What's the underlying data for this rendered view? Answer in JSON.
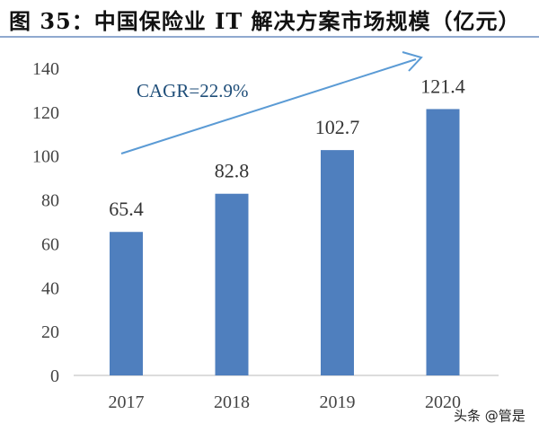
{
  "title": "图 35：中国保险业 IT 解决方案市场规模（亿元）",
  "watermark": "头条 @管是",
  "chart_data": {
    "type": "bar",
    "categories": [
      "2017",
      "2018",
      "2019",
      "2020"
    ],
    "values": [
      65.4,
      82.8,
      102.7,
      121.4
    ],
    "data_labels": [
      "65.4",
      "82.8",
      "102.7",
      "121.4"
    ],
    "ylim": [
      0,
      140
    ],
    "yticks": [
      0,
      20,
      40,
      60,
      80,
      100,
      120,
      140
    ],
    "grid": false,
    "annotation": "CAGR=22.9%",
    "colors": {
      "bar": "#4f7fbe",
      "arrow": "#5b9bd5",
      "annotation": "#1f4e79",
      "axis": "#d0d0d0"
    }
  }
}
